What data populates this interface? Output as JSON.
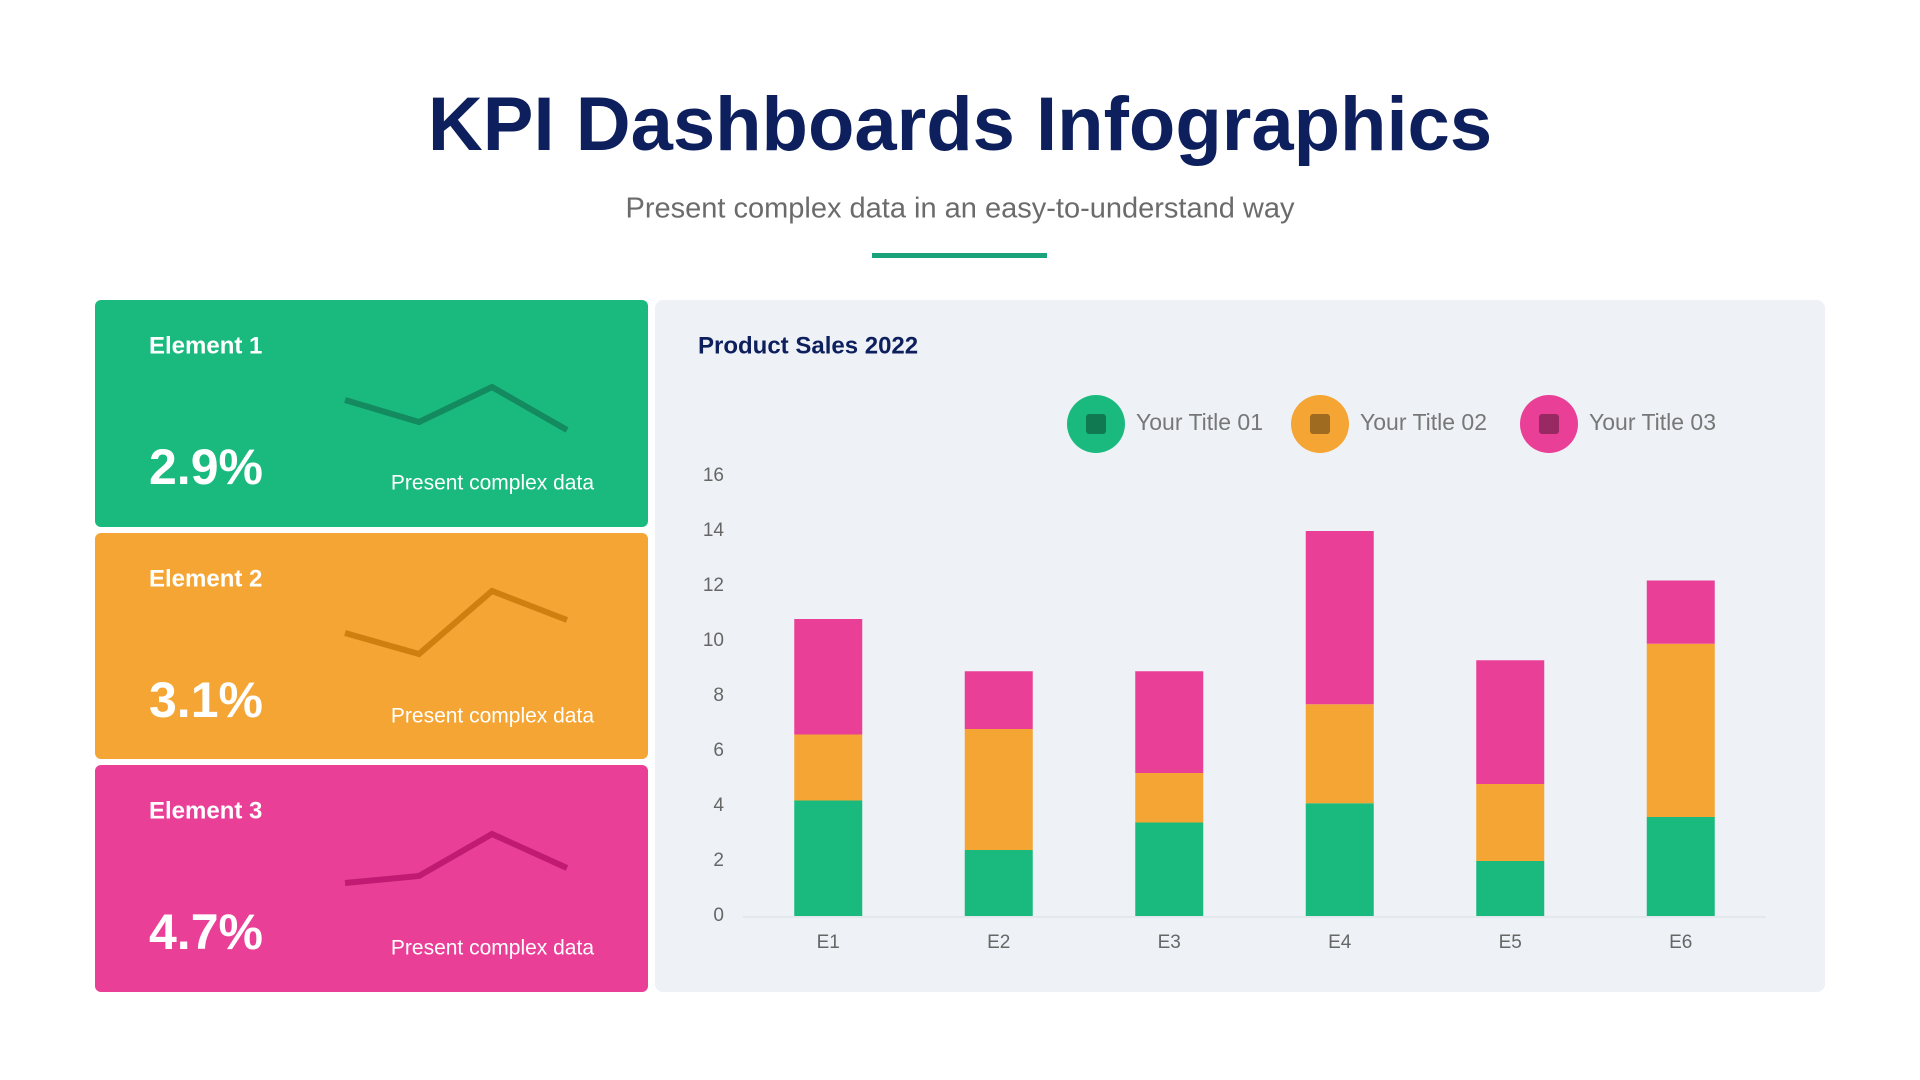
{
  "header": {
    "title": "KPI Dashboards Infographics",
    "subtitle": "Present complex data in an easy-to-understand way"
  },
  "cards": [
    {
      "label": "Element 1",
      "value": "2.9%",
      "caption": "Present complex data"
    },
    {
      "label": "Element 2",
      "value": "3.1%",
      "caption": "Present complex data"
    },
    {
      "label": "Element 3",
      "value": "4.7%",
      "caption": "Present complex data"
    }
  ],
  "chart_data": {
    "type": "stacked_bar",
    "title": "Product Sales 2022",
    "categories": [
      "E1",
      "E2",
      "E3",
      "E4",
      "E5",
      "E6"
    ],
    "series": [
      {
        "name": "Your Title 01",
        "color": "#1aba7f",
        "values": [
          4.2,
          2.4,
          3.4,
          4.1,
          2.0,
          3.6
        ]
      },
      {
        "name": "Your Title 02",
        "color": "#f4a534",
        "values": [
          2.4,
          4.4,
          1.8,
          3.6,
          2.8,
          6.3
        ]
      },
      {
        "name": "Your Title 03",
        "color": "#ea3f97",
        "values": [
          4.2,
          2.1,
          3.7,
          6.3,
          4.5,
          2.3
        ]
      }
    ],
    "ylim": [
      0,
      16
    ],
    "yticks": [
      0,
      2,
      4,
      6,
      8,
      10,
      12,
      14,
      16
    ],
    "grid": false
  }
}
